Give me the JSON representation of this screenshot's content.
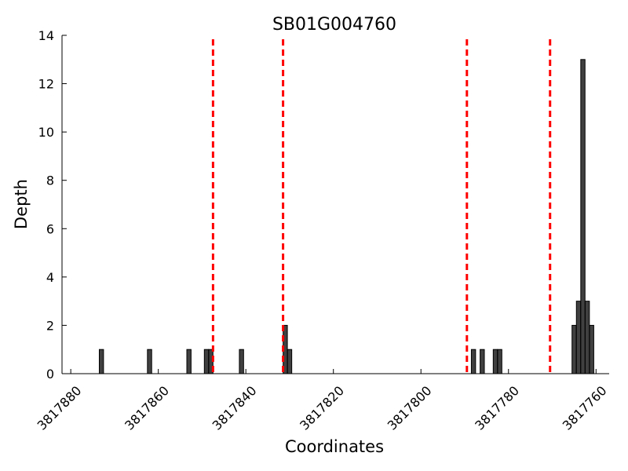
{
  "chart_data": {
    "type": "bar",
    "title": "SB01G004760",
    "xlabel": "Coordinates",
    "ylabel": "Depth",
    "xlim": [
      3817882,
      3817757
    ],
    "ylim": [
      0,
      14
    ],
    "x_reversed": true,
    "grid": false,
    "x_ticks": [
      3817880,
      3817860,
      3817840,
      3817820,
      3817800,
      3817780,
      3817760
    ],
    "y_ticks": [
      0,
      2,
      4,
      6,
      8,
      10,
      12,
      14
    ],
    "bar_color": "#404040",
    "bar_edge_color": "#000000",
    "bars": [
      {
        "x": 3817873,
        "value": 1
      },
      {
        "x": 3817862,
        "value": 1
      },
      {
        "x": 3817853,
        "value": 1
      },
      {
        "x": 3817849,
        "value": 1
      },
      {
        "x": 3817848,
        "value": 1
      },
      {
        "x": 3817841,
        "value": 1
      },
      {
        "x": 3817831,
        "value": 2
      },
      {
        "x": 3817830,
        "value": 1
      },
      {
        "x": 3817788,
        "value": 1
      },
      {
        "x": 3817786,
        "value": 1
      },
      {
        "x": 3817783,
        "value": 1
      },
      {
        "x": 3817782,
        "value": 1
      },
      {
        "x": 3817765,
        "value": 2
      },
      {
        "x": 3817764,
        "value": 3
      },
      {
        "x": 3817763,
        "value": 13
      },
      {
        "x": 3817762,
        "value": 3
      },
      {
        "x": 3817761,
        "value": 2
      }
    ],
    "vlines": {
      "color": "#ff0000",
      "style": "dashed",
      "x": [
        3817847.5,
        3817831.5,
        3817789.5,
        3817770.5
      ]
    }
  }
}
